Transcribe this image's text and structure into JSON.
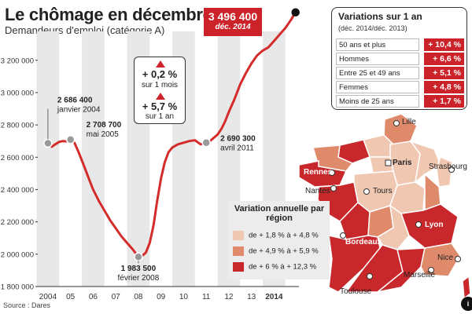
{
  "title": "Le chômage en décembre",
  "subtitle": "Demandeurs d'emploi (catégorie A)",
  "source": "Source : Dares",
  "logo_text": "i",
  "colors": {
    "line": "#d42b2b",
    "accent_red": "#cc2229",
    "band": "#e8e8e8",
    "axis": "#333333",
    "map_light": "#f0c7b0",
    "map_medium": "#e08a6c",
    "map_dark": "#c8282b"
  },
  "chart_data": {
    "type": "line",
    "title": "Le chômage en décembre",
    "subtitle": "Demandeurs d'emploi (catégorie A)",
    "xlabel": "",
    "ylabel": "",
    "ylim": [
      1800000,
      3500000
    ],
    "y_ticks": [
      1800000,
      2000000,
      2200000,
      2400000,
      2600000,
      2800000,
      3000000,
      3200000
    ],
    "y_tick_labels": [
      "1 800 000",
      "2 000 000",
      "2 200 000",
      "2 400 000",
      "2 600 000",
      "2 800 000",
      "3 000 000",
      "3 200 000"
    ],
    "x_tick_labels": [
      "2004",
      "05",
      "06",
      "07",
      "08",
      "09",
      "10",
      "11",
      "12",
      "13",
      "2014"
    ],
    "x_tick_years": [
      2004,
      2005,
      2006,
      2007,
      2008,
      2009,
      2010,
      2011,
      2012,
      2013,
      2014
    ],
    "grid": false,
    "series": [
      {
        "x": [
          2004.0,
          2004.17,
          2004.33,
          2004.5,
          2004.67,
          2004.83,
          2005.0,
          2005.17,
          2005.33,
          2005.5,
          2005.67,
          2005.83,
          2006.0,
          2006.25,
          2006.5,
          2006.75,
          2007.0,
          2007.25,
          2007.5,
          2007.75,
          2008.0,
          2008.17,
          2008.33,
          2008.5,
          2008.67,
          2008.83,
          2009.0,
          2009.17,
          2009.33,
          2009.5,
          2009.75,
          2010.0,
          2010.25,
          2010.5,
          2010.75,
          2011.0,
          2011.17,
          2011.33,
          2011.5,
          2011.67,
          2011.83,
          2012.0,
          2012.25,
          2012.5,
          2012.75,
          2013.0,
          2013.25,
          2013.5,
          2013.75,
          2014.0,
          2014.25,
          2014.5,
          2014.75,
          2014.95
        ],
        "values": [
          2686400,
          2665000,
          2680000,
          2695000,
          2700000,
          2698000,
          2708700,
          2690000,
          2640000,
          2580000,
          2520000,
          2460000,
          2400000,
          2330000,
          2270000,
          2210000,
          2160000,
          2110000,
          2070000,
          2030000,
          1983500,
          1990000,
          2010000,
          2070000,
          2180000,
          2330000,
          2470000,
          2570000,
          2630000,
          2660000,
          2680000,
          2690000,
          2700000,
          2705000,
          2680000,
          2690300,
          2700000,
          2720000,
          2740000,
          2775000,
          2820000,
          2880000,
          2960000,
          3050000,
          3120000,
          3180000,
          3230000,
          3260000,
          3280000,
          3320000,
          3360000,
          3400000,
          3450000,
          3496400
        ]
      }
    ],
    "annotations": [
      {
        "x": 2004.0,
        "y": 2686400,
        "value": "2 686 400",
        "date": "janvier 2004"
      },
      {
        "x": 2005.0,
        "y": 2708700,
        "value": "2 708 700",
        "date": "mai 2005"
      },
      {
        "x": 2008.0,
        "y": 1983500,
        "value": "1 983 500",
        "date": "février 2008"
      },
      {
        "x": 2011.0,
        "y": 2690300,
        "value": "2 690 300",
        "date": "avril 2011"
      },
      {
        "x": 2014.95,
        "y": 3496400,
        "value": "3 496 400",
        "date": "déc. 2014"
      }
    ]
  },
  "change_box": {
    "month_value": "+ 0,2 %",
    "month_label": "sur 1 mois",
    "year_value": "+ 5,7 %",
    "year_label": "sur 1 an"
  },
  "variations": {
    "title": "Variations sur 1 an",
    "subtitle": "(déc. 2014/déc. 2013)",
    "rows": [
      {
        "label": "50 ans et plus",
        "value": "+ 10,4 %"
      },
      {
        "label": "Hommes",
        "value": "+ 6,6 %"
      },
      {
        "label": "Entre 25 et 49 ans",
        "value": "+ 5,1 %"
      },
      {
        "label": "Femmes",
        "value": "+ 4,8 %"
      },
      {
        "label": "Moins de 25 ans",
        "value": "+ 1,7 %"
      }
    ]
  },
  "legend": {
    "title": "Variation annuelle par région",
    "items": [
      {
        "label": "de + 1,8 % à + 4,8 %",
        "color": "#f0c7b0"
      },
      {
        "label": "de + 4,9 % à + 5,9 %",
        "color": "#e08a6c"
      },
      {
        "label": "de + 6 % à + 12,3 %",
        "color": "#c8282b"
      }
    ]
  },
  "cities": {
    "lille": "Lille",
    "paris": "Paris",
    "strasbourg": "Strasbourg",
    "rennes": "Rennes",
    "nantes": "Nantes",
    "tours": "Tours",
    "lyon": "Lyon",
    "bordeaux": "Bordeaux",
    "nice": "Nice",
    "marseille": "Marseille",
    "toulouse": "Toulouse"
  }
}
